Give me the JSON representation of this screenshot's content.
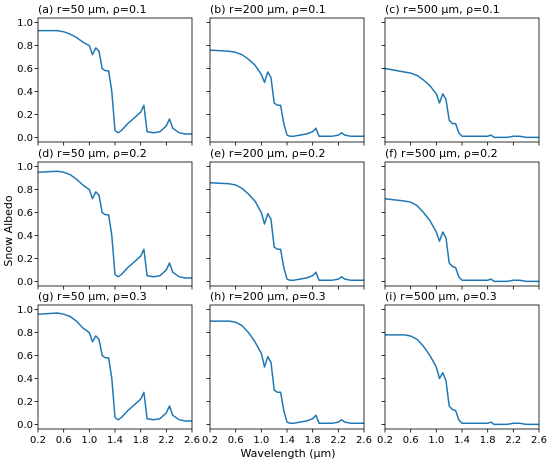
{
  "figure": {
    "xlabel": "Wavelength (μm)",
    "ylabel": "Snow Albedo",
    "line_color": "#1f77b4"
  },
  "chart_data": [
    {
      "type": "line",
      "title": "(a) r=50 μm, ρ=0.1",
      "xlim": [
        0.2,
        2.6
      ],
      "ylim": [
        -0.04,
        1.04
      ],
      "xticks": [
        "0.2",
        "0.6",
        "1.0",
        "1.4",
        "1.8",
        "2.2",
        "2.6"
      ],
      "yticks": [
        "0.0",
        "0.2",
        "0.4",
        "0.6",
        "0.8",
        "1.0"
      ],
      "x": [
        0.2,
        0.5,
        0.6,
        0.7,
        0.8,
        0.9,
        1.0,
        1.05,
        1.1,
        1.15,
        1.2,
        1.25,
        1.3,
        1.35,
        1.4,
        1.45,
        1.5,
        1.6,
        1.7,
        1.8,
        1.85,
        1.9,
        2.0,
        2.1,
        2.2,
        2.25,
        2.3,
        2.4,
        2.5,
        2.6
      ],
      "y": [
        0.93,
        0.93,
        0.92,
        0.9,
        0.87,
        0.83,
        0.8,
        0.72,
        0.78,
        0.75,
        0.6,
        0.58,
        0.58,
        0.4,
        0.06,
        0.04,
        0.06,
        0.12,
        0.17,
        0.22,
        0.28,
        0.05,
        0.04,
        0.05,
        0.1,
        0.16,
        0.08,
        0.04,
        0.03,
        0.03
      ]
    },
    {
      "type": "line",
      "title": "(b) r=200 μm, ρ=0.1",
      "xlim": [
        0.2,
        2.6
      ],
      "ylim": [
        -0.04,
        1.04
      ],
      "xticks": [
        "0.2",
        "0.6",
        "1.0",
        "1.4",
        "1.8",
        "2.2",
        "2.6"
      ],
      "yticks": [
        "0.0",
        "0.2",
        "0.4",
        "0.6",
        "0.8",
        "1.0"
      ],
      "x": [
        0.2,
        0.5,
        0.6,
        0.7,
        0.8,
        0.9,
        1.0,
        1.05,
        1.1,
        1.15,
        1.2,
        1.25,
        1.3,
        1.35,
        1.4,
        1.45,
        1.5,
        1.6,
        1.7,
        1.8,
        1.85,
        1.9,
        2.0,
        2.1,
        2.2,
        2.25,
        2.3,
        2.4,
        2.5,
        2.6
      ],
      "y": [
        0.76,
        0.75,
        0.74,
        0.72,
        0.68,
        0.63,
        0.55,
        0.48,
        0.57,
        0.52,
        0.3,
        0.28,
        0.28,
        0.12,
        0.02,
        0.01,
        0.01,
        0.02,
        0.03,
        0.05,
        0.08,
        0.01,
        0.01,
        0.01,
        0.02,
        0.04,
        0.02,
        0.01,
        0.01,
        0.01
      ]
    },
    {
      "type": "line",
      "title": "(c) r=500 μm, ρ=0.1",
      "xlim": [
        0.2,
        2.6
      ],
      "ylim": [
        -0.04,
        1.04
      ],
      "xticks": [
        "0.2",
        "0.6",
        "1.0",
        "1.4",
        "1.8",
        "2.2",
        "2.6"
      ],
      "yticks": [
        "0.0",
        "0.2",
        "0.4",
        "0.6",
        "0.8",
        "1.0"
      ],
      "x": [
        0.2,
        0.5,
        0.6,
        0.7,
        0.8,
        0.9,
        1.0,
        1.05,
        1.1,
        1.15,
        1.2,
        1.25,
        1.3,
        1.35,
        1.4,
        1.45,
        1.5,
        1.6,
        1.7,
        1.8,
        1.85,
        1.9,
        2.0,
        2.1,
        2.2,
        2.25,
        2.3,
        2.4,
        2.5,
        2.6
      ],
      "y": [
        0.6,
        0.57,
        0.56,
        0.54,
        0.5,
        0.45,
        0.38,
        0.3,
        0.38,
        0.33,
        0.15,
        0.12,
        0.12,
        0.04,
        0.01,
        0.01,
        0.01,
        0.01,
        0.01,
        0.01,
        0.02,
        0.0,
        0.0,
        0.0,
        0.01,
        0.01,
        0.01,
        0.0,
        0.0,
        0.0
      ]
    },
    {
      "type": "line",
      "title": "(d) r=50 μm, ρ=0.2",
      "xlim": [
        0.2,
        2.6
      ],
      "ylim": [
        -0.04,
        1.04
      ],
      "xticks": [
        "0.2",
        "0.6",
        "1.0",
        "1.4",
        "1.8",
        "2.2",
        "2.6"
      ],
      "yticks": [
        "0.0",
        "0.2",
        "0.4",
        "0.6",
        "0.8",
        "1.0"
      ],
      "x": [
        0.2,
        0.5,
        0.6,
        0.7,
        0.8,
        0.9,
        1.0,
        1.05,
        1.1,
        1.15,
        1.2,
        1.25,
        1.3,
        1.35,
        1.4,
        1.45,
        1.5,
        1.6,
        1.7,
        1.8,
        1.85,
        1.9,
        2.0,
        2.1,
        2.2,
        2.25,
        2.3,
        2.4,
        2.5,
        2.6
      ],
      "y": [
        0.95,
        0.96,
        0.95,
        0.93,
        0.89,
        0.84,
        0.8,
        0.72,
        0.78,
        0.75,
        0.6,
        0.58,
        0.58,
        0.4,
        0.06,
        0.04,
        0.06,
        0.12,
        0.17,
        0.22,
        0.28,
        0.05,
        0.04,
        0.05,
        0.1,
        0.16,
        0.08,
        0.04,
        0.03,
        0.03
      ]
    },
    {
      "type": "line",
      "title": "(e) r=200 μm, ρ=0.2",
      "xlim": [
        0.2,
        2.6
      ],
      "ylim": [
        -0.04,
        1.04
      ],
      "xticks": [
        "0.2",
        "0.6",
        "1.0",
        "1.4",
        "1.8",
        "2.2",
        "2.6"
      ],
      "yticks": [
        "0.0",
        "0.2",
        "0.4",
        "0.6",
        "0.8",
        "1.0"
      ],
      "x": [
        0.2,
        0.5,
        0.6,
        0.7,
        0.8,
        0.9,
        1.0,
        1.05,
        1.1,
        1.15,
        1.2,
        1.25,
        1.3,
        1.35,
        1.4,
        1.45,
        1.5,
        1.6,
        1.7,
        1.8,
        1.85,
        1.9,
        2.0,
        2.1,
        2.2,
        2.25,
        2.3,
        2.4,
        2.5,
        2.6
      ],
      "y": [
        0.86,
        0.85,
        0.84,
        0.81,
        0.76,
        0.7,
        0.6,
        0.5,
        0.59,
        0.54,
        0.3,
        0.28,
        0.28,
        0.12,
        0.02,
        0.01,
        0.01,
        0.02,
        0.03,
        0.05,
        0.08,
        0.01,
        0.01,
        0.01,
        0.02,
        0.04,
        0.02,
        0.01,
        0.01,
        0.01
      ]
    },
    {
      "type": "line",
      "title": "(f) r=500 μm, ρ=0.2",
      "xlim": [
        0.2,
        2.6
      ],
      "ylim": [
        -0.04,
        1.04
      ],
      "xticks": [
        "0.2",
        "0.6",
        "1.0",
        "1.4",
        "1.8",
        "2.2",
        "2.6"
      ],
      "yticks": [
        "0.0",
        "0.2",
        "0.4",
        "0.6",
        "0.8",
        "1.0"
      ],
      "x": [
        0.2,
        0.5,
        0.6,
        0.7,
        0.8,
        0.9,
        1.0,
        1.05,
        1.1,
        1.15,
        1.2,
        1.25,
        1.3,
        1.35,
        1.4,
        1.45,
        1.5,
        1.6,
        1.7,
        1.8,
        1.85,
        1.9,
        2.0,
        2.1,
        2.2,
        2.25,
        2.3,
        2.4,
        2.5,
        2.6
      ],
      "y": [
        0.72,
        0.7,
        0.69,
        0.66,
        0.6,
        0.53,
        0.43,
        0.35,
        0.43,
        0.38,
        0.16,
        0.13,
        0.12,
        0.04,
        0.01,
        0.01,
        0.01,
        0.01,
        0.01,
        0.01,
        0.02,
        0.0,
        0.0,
        0.0,
        0.01,
        0.01,
        0.01,
        0.0,
        0.0,
        0.0
      ]
    },
    {
      "type": "line",
      "title": "(g) r=50 μm, ρ=0.3",
      "xlim": [
        0.2,
        2.6
      ],
      "ylim": [
        -0.04,
        1.04
      ],
      "xticks": [
        "0.2",
        "0.6",
        "1.0",
        "1.4",
        "1.8",
        "2.2",
        "2.6"
      ],
      "yticks": [
        "0.0",
        "0.2",
        "0.4",
        "0.6",
        "0.8",
        "1.0"
      ],
      "x": [
        0.2,
        0.5,
        0.6,
        0.7,
        0.8,
        0.9,
        1.0,
        1.05,
        1.1,
        1.15,
        1.2,
        1.25,
        1.3,
        1.35,
        1.4,
        1.45,
        1.5,
        1.6,
        1.7,
        1.8,
        1.85,
        1.9,
        2.0,
        2.1,
        2.2,
        2.25,
        2.3,
        2.4,
        2.5,
        2.6
      ],
      "y": [
        0.96,
        0.97,
        0.96,
        0.94,
        0.9,
        0.84,
        0.8,
        0.72,
        0.77,
        0.74,
        0.6,
        0.58,
        0.58,
        0.4,
        0.06,
        0.04,
        0.06,
        0.12,
        0.17,
        0.22,
        0.28,
        0.05,
        0.04,
        0.05,
        0.1,
        0.16,
        0.08,
        0.04,
        0.03,
        0.03
      ]
    },
    {
      "type": "line",
      "title": "(h) r=200 μm, ρ=0.3",
      "xlim": [
        0.2,
        2.6
      ],
      "ylim": [
        -0.04,
        1.04
      ],
      "xticks": [
        "0.2",
        "0.6",
        "1.0",
        "1.4",
        "1.8",
        "2.2",
        "2.6"
      ],
      "yticks": [
        "0.0",
        "0.2",
        "0.4",
        "0.6",
        "0.8",
        "1.0"
      ],
      "x": [
        0.2,
        0.5,
        0.6,
        0.7,
        0.8,
        0.9,
        1.0,
        1.05,
        1.1,
        1.15,
        1.2,
        1.25,
        1.3,
        1.35,
        1.4,
        1.45,
        1.5,
        1.6,
        1.7,
        1.8,
        1.85,
        1.9,
        2.0,
        2.1,
        2.2,
        2.25,
        2.3,
        2.4,
        2.5,
        2.6
      ],
      "y": [
        0.9,
        0.9,
        0.89,
        0.86,
        0.8,
        0.72,
        0.62,
        0.5,
        0.59,
        0.54,
        0.3,
        0.28,
        0.28,
        0.12,
        0.02,
        0.01,
        0.01,
        0.02,
        0.03,
        0.05,
        0.08,
        0.01,
        0.01,
        0.01,
        0.02,
        0.04,
        0.02,
        0.01,
        0.01,
        0.01
      ]
    },
    {
      "type": "line",
      "title": "(i) r=500 μm, ρ=0.3",
      "xlim": [
        0.2,
        2.6
      ],
      "ylim": [
        -0.04,
        1.04
      ],
      "xticks": [
        "0.2",
        "0.6",
        "1.0",
        "1.4",
        "1.8",
        "2.2",
        "2.6"
      ],
      "yticks": [
        "0.0",
        "0.2",
        "0.4",
        "0.6",
        "0.8",
        "1.0"
      ],
      "x": [
        0.2,
        0.5,
        0.6,
        0.7,
        0.8,
        0.9,
        1.0,
        1.05,
        1.1,
        1.15,
        1.2,
        1.25,
        1.3,
        1.35,
        1.4,
        1.45,
        1.5,
        1.6,
        1.7,
        1.8,
        1.85,
        1.9,
        2.0,
        2.1,
        2.2,
        2.25,
        2.3,
        2.4,
        2.5,
        2.6
      ],
      "y": [
        0.78,
        0.78,
        0.77,
        0.74,
        0.68,
        0.6,
        0.5,
        0.4,
        0.45,
        0.38,
        0.16,
        0.13,
        0.12,
        0.04,
        0.01,
        0.01,
        0.01,
        0.01,
        0.01,
        0.01,
        0.02,
        0.0,
        0.0,
        0.0,
        0.01,
        0.01,
        0.01,
        0.0,
        0.0,
        0.0
      ]
    }
  ]
}
